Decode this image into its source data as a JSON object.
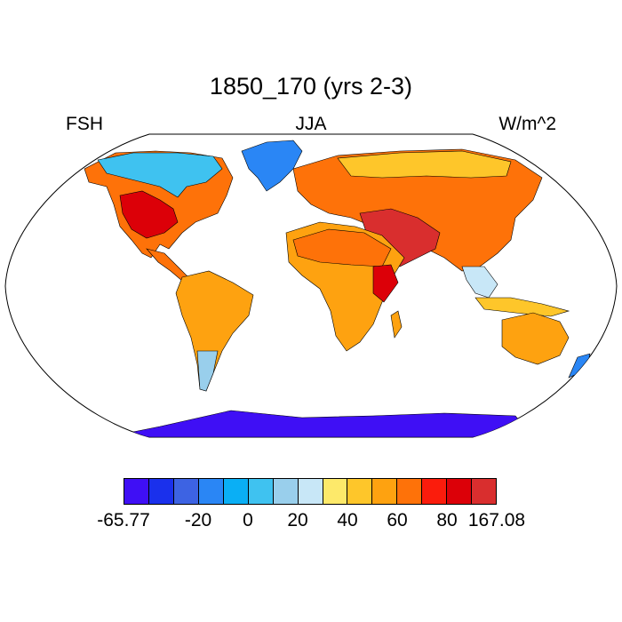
{
  "title": "1850_170 (yrs 2-3)",
  "left_label": "FSH",
  "center_label": "JJA",
  "right_label": "W/m^2",
  "colorbar": {
    "colors": [
      "#3f0ff5",
      "#1a30ec",
      "#3d63e3",
      "#2a86f5",
      "#0aaff5",
      "#3fc2f0",
      "#99cfec",
      "#c8e7f7",
      "#fde96a",
      "#fec62a",
      "#fea210",
      "#fe7209",
      "#fb1c0c",
      "#dc0008",
      "#d92e2e"
    ],
    "ticks": [
      {
        "label": "-65.77",
        "boundary": 0
      },
      {
        "label": "-20",
        "boundary": 3
      },
      {
        "label": "0",
        "boundary": 5
      },
      {
        "label": "20",
        "boundary": 7
      },
      {
        "label": "40",
        "boundary": 9
      },
      {
        "label": "60",
        "boundary": 11
      },
      {
        "label": "80",
        "boundary": 13
      },
      {
        "label": "167.08",
        "boundary": 15
      }
    ]
  }
}
